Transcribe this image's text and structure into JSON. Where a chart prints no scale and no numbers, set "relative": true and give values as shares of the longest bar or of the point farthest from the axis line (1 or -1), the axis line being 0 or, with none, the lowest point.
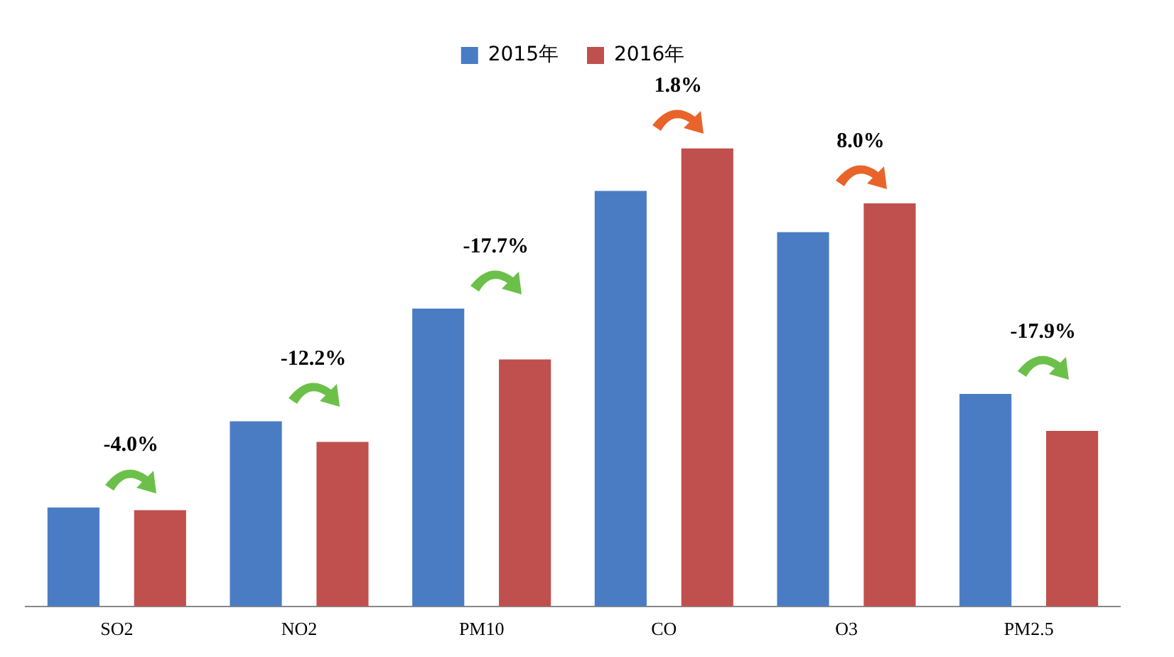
{
  "chart_data": {
    "type": "bar",
    "relative": true,
    "categories": [
      "SO2",
      "NO2",
      "PM10",
      "CO",
      "O3",
      "PM2.5"
    ],
    "series": [
      {
        "name": "2015年",
        "color": "#4a7cc4",
        "values": [
          0.216,
          0.404,
          0.65,
          0.907,
          0.817,
          0.464
        ]
      },
      {
        "name": "2016年",
        "color": "#c0504d",
        "values": [
          0.21,
          0.359,
          0.539,
          1,
          0.88,
          0.383
        ]
      }
    ],
    "legend": "top",
    "grid": false,
    "annotations": [
      "-4.0%",
      "-12.2%",
      "-17.7%",
      "1.8%",
      "8.0%",
      "-17.9%"
    ]
  }
}
